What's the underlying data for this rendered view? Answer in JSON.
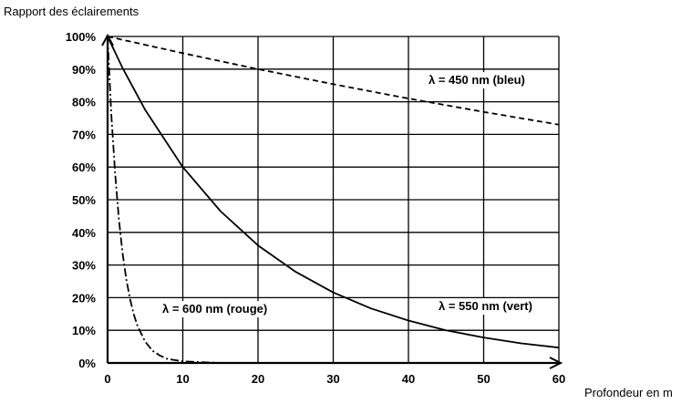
{
  "chart_data": {
    "type": "line",
    "title": "",
    "ylabel": "Rapport des éclairements",
    "xlabel": "Profondeur en m",
    "xlim": [
      0,
      60
    ],
    "ylim": [
      0,
      100
    ],
    "x_ticks": [
      "0",
      "10",
      "20",
      "30",
      "40",
      "50",
      "60"
    ],
    "y_ticks": [
      "0%",
      "10%",
      "20%",
      "30%",
      "40%",
      "50%",
      "60%",
      "70%",
      "80%",
      "90%",
      "100%"
    ],
    "grid": true,
    "series": [
      {
        "name": "λ = 450 nm (bleu)",
        "line_style": "dashed",
        "x": [
          0,
          10,
          20,
          30,
          40,
          50,
          60
        ],
        "y": [
          100,
          94.9,
          90.0,
          85.4,
          81.0,
          76.9,
          73.0
        ]
      },
      {
        "name": "λ = 550 nm (vert)",
        "line_style": "solid",
        "x": [
          0,
          2,
          5,
          10,
          15,
          20,
          25,
          30,
          35,
          40,
          45,
          50,
          55,
          60
        ],
        "y": [
          100,
          90.3,
          77.5,
          60.0,
          46.5,
          36.0,
          27.9,
          21.6,
          16.7,
          13.0,
          10.0,
          7.8,
          6.0,
          4.7
        ]
      },
      {
        "name": "λ = 600 nm (rouge)",
        "line_style": "dashdot",
        "x": [
          0,
          0.5,
          1,
          1.5,
          2,
          2.5,
          3,
          3.5,
          4,
          5,
          6,
          7,
          8,
          10,
          15,
          20,
          30,
          40,
          50,
          60
        ],
        "y": [
          100,
          76,
          58,
          44,
          33.5,
          25.5,
          19.4,
          14.7,
          11.2,
          6.5,
          3.7,
          2.2,
          1.2,
          0.5,
          0,
          0,
          0,
          0,
          0,
          0
        ]
      }
    ]
  }
}
